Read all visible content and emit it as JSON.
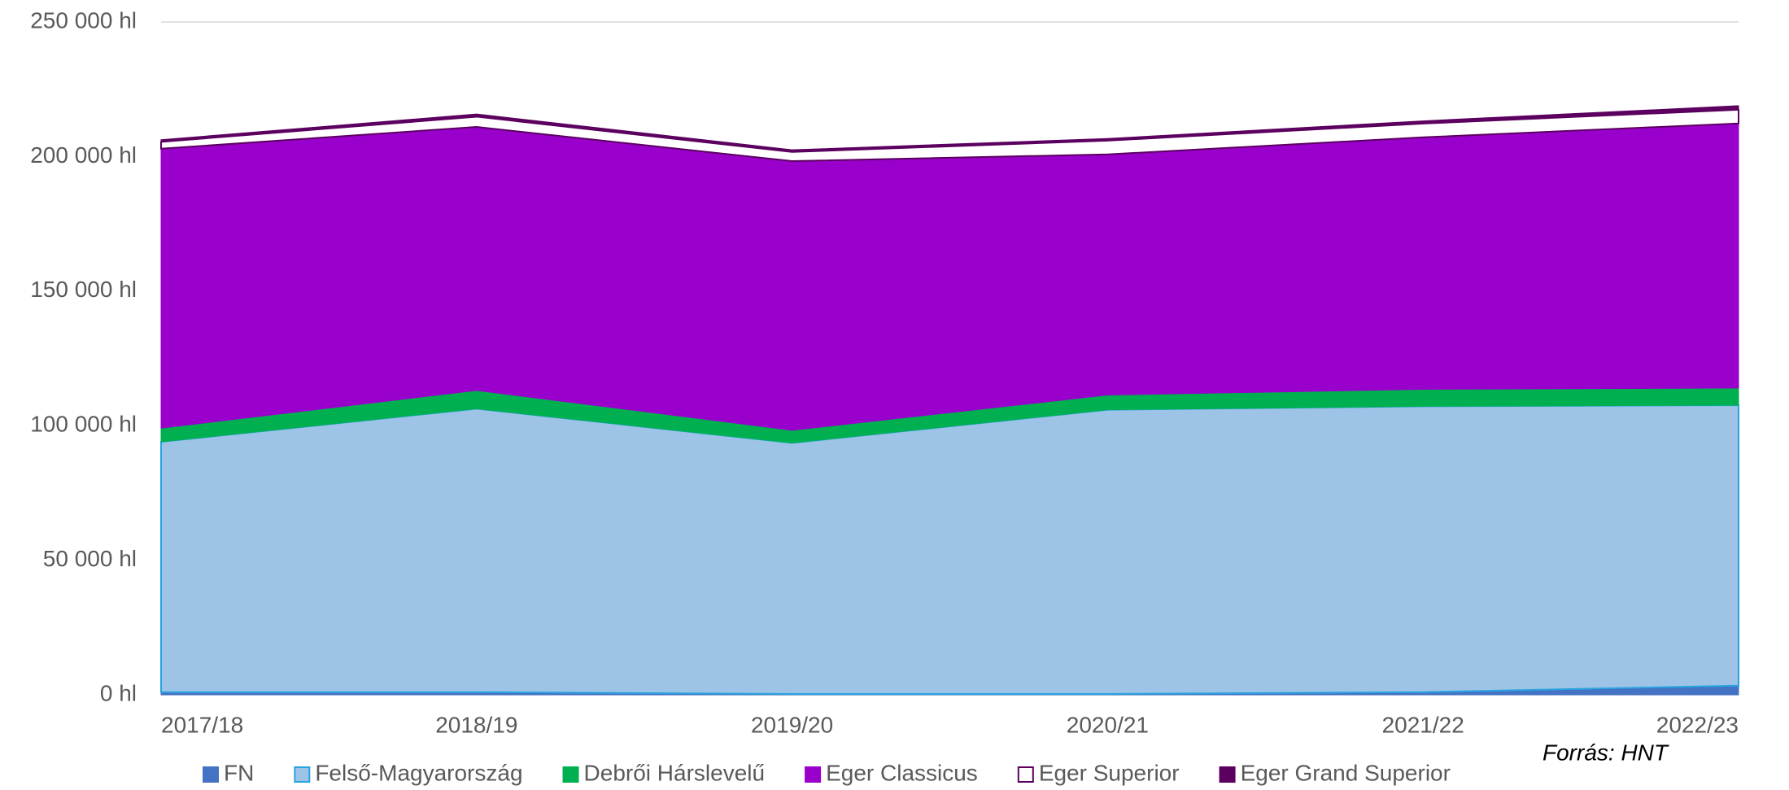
{
  "chart_data": {
    "type": "stacked-area",
    "categories": [
      "2017/18",
      "2018/19",
      "2019/20",
      "2020/21",
      "2021/22",
      "2022/23"
    ],
    "series": [
      {
        "name": "FN",
        "color": "#4472c4",
        "values": [
          1000,
          1000,
          300,
          300,
          1000,
          3400
        ]
      },
      {
        "name": "Felső-Magyarország",
        "color": "#9dc3e6",
        "stroke": "#29a3df",
        "values": [
          93000,
          105300,
          93300,
          105600,
          106200,
          104200
        ]
      },
      {
        "name": "Debrői Hárslevelű",
        "color": "#00b050",
        "values": [
          5100,
          6800,
          4700,
          5500,
          6300,
          6400
        ]
      },
      {
        "name": "Eger Classicus",
        "color": "#9900cc",
        "values": [
          103800,
          97900,
          100000,
          89400,
          93650,
          98300
        ]
      },
      {
        "name": "Eger Superior",
        "color": "#ffffff",
        "stroke": "#5c0060",
        "values": [
          2550,
          3800,
          3400,
          5100,
          5100,
          5100
        ]
      },
      {
        "name": "Eger Grand Superior",
        "color": "#5c0060",
        "values": [
          800,
          1000,
          800,
          800,
          1000,
          1500
        ]
      }
    ],
    "ylim": [
      0,
      250000
    ],
    "yticks": [
      {
        "value": 0,
        "label": "0 hl"
      },
      {
        "value": 50000,
        "label": "50 000 hl"
      },
      {
        "value": 100000,
        "label": "100 000 hl"
      },
      {
        "value": 150000,
        "label": "150 000 hl"
      },
      {
        "value": 200000,
        "label": "200 000 hl"
      },
      {
        "value": 250000,
        "label": "250 000 hl"
      }
    ],
    "grid": true,
    "legend": "bottom",
    "annotation": "Forrás: HNT"
  }
}
